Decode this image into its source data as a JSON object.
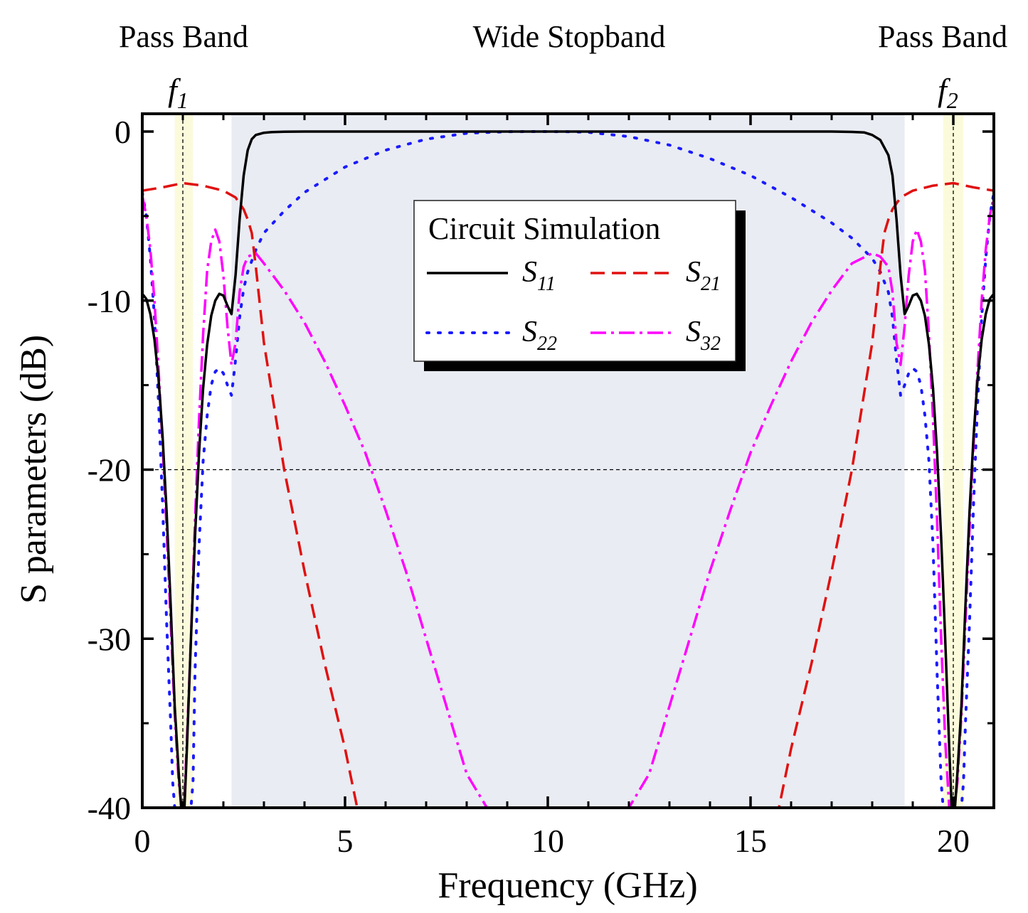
{
  "chart_data": {
    "type": "line",
    "title": "",
    "xlabel": "Frequency (GHz)",
    "ylabel": "S parameters (dB)",
    "xlim": [
      0,
      21
    ],
    "ylim": [
      -40,
      1.2
    ],
    "x_ticks": [
      0,
      5,
      10,
      15,
      20
    ],
    "y_ticks": [
      0,
      -10,
      -20,
      -30,
      -40
    ],
    "x_tick_labels": [
      "0",
      "5",
      "10",
      "15",
      "20"
    ],
    "y_tick_labels": [
      "0",
      "-10",
      "-20",
      "-30",
      "-40"
    ],
    "grid": false,
    "reference_line_y": -20,
    "legend": {
      "title": "Circuit Simulation",
      "position": "upper-center",
      "entries": [
        {
          "series": "S11",
          "base": "S",
          "sub": "11"
        },
        {
          "series": "S21",
          "base": "S",
          "sub": "21"
        },
        {
          "series": "S22",
          "base": "S",
          "sub": "22"
        },
        {
          "series": "S32",
          "base": "S",
          "sub": "32"
        }
      ]
    },
    "annotations": {
      "band_left": "Pass Band",
      "band_center": "Wide Stopband",
      "band_right": "Pass Band",
      "marker_f1": {
        "base": "f",
        "sub": "1",
        "x": 1.0
      },
      "marker_f2": {
        "base": "f",
        "sub": "2",
        "x": 20.0
      }
    },
    "regions": {
      "stopband": [
        2.2,
        18.8
      ],
      "passband_f1": [
        0.8,
        1.25
      ],
      "passband_f2": [
        19.75,
        20.25
      ]
    },
    "series": [
      {
        "name": "S11",
        "color": "#000000",
        "style": "solid",
        "x": [
          0,
          0.1,
          0.2,
          0.3,
          0.4,
          0.5,
          0.6,
          0.7,
          0.8,
          0.9,
          0.96,
          1.0,
          1.04,
          1.1,
          1.2,
          1.3,
          1.4,
          1.5,
          1.6,
          1.7,
          1.8,
          1.9,
          2.0,
          2.1,
          2.2,
          2.3,
          2.4,
          2.5,
          2.6,
          2.7,
          2.8,
          3.0,
          3.2,
          3.5,
          4,
          5,
          6,
          7,
          8,
          9,
          10,
          11,
          12,
          13,
          14,
          15,
          16,
          17,
          17.5,
          17.8,
          18.0,
          18.2,
          18.4,
          18.5,
          18.6,
          18.7,
          18.8,
          18.9,
          19.0,
          19.1,
          19.2,
          19.3,
          19.4,
          19.5,
          19.6,
          19.7,
          19.8,
          19.9,
          19.96,
          20.0,
          20.04,
          20.1,
          20.2,
          20.3,
          20.4,
          20.5,
          20.6,
          20.7,
          20.8,
          20.9,
          21.0
        ],
        "y": [
          -9.6,
          -9.9,
          -10.8,
          -12.3,
          -14.6,
          -18.0,
          -22.5,
          -28.0,
          -34.0,
          -38.0,
          -40.0,
          -40.0,
          -40.0,
          -36.5,
          -30.0,
          -24.0,
          -19.0,
          -15.2,
          -12.6,
          -10.9,
          -10.0,
          -9.6,
          -9.7,
          -10.3,
          -10.8,
          -8.5,
          -5.2,
          -2.6,
          -1.1,
          -0.45,
          -0.2,
          -0.07,
          -0.03,
          -0.01,
          0,
          0,
          0,
          0,
          0,
          0,
          0,
          0,
          0,
          0,
          0,
          0,
          0,
          0,
          -0.02,
          -0.05,
          -0.2,
          -0.5,
          -1.4,
          -2.6,
          -5.2,
          -8.5,
          -10.8,
          -10.3,
          -9.7,
          -9.6,
          -10.0,
          -10.9,
          -12.6,
          -15.2,
          -19.0,
          -24.0,
          -30.0,
          -36.5,
          -40.0,
          -40.0,
          -40.0,
          -38.0,
          -34.0,
          -28.0,
          -22.5,
          -18.0,
          -14.6,
          -12.3,
          -10.8,
          -9.9,
          -9.6
        ]
      },
      {
        "name": "S21",
        "color": "#e01010",
        "style": "dashed",
        "x": [
          0,
          0.5,
          1.0,
          1.5,
          2.0,
          2.3,
          2.5,
          2.6,
          2.7,
          2.8,
          3.0,
          3.5,
          4.0,
          4.5,
          5.0,
          5.3,
          15.7,
          16.0,
          16.5,
          17.0,
          17.5,
          18.0,
          18.2,
          18.3,
          18.4,
          18.5,
          18.7,
          19.0,
          19.5,
          20.0,
          20.5,
          21.0
        ],
        "y": [
          -3.5,
          -3.3,
          -3.05,
          -3.2,
          -3.5,
          -3.9,
          -4.6,
          -5.2,
          -6.0,
          -8.0,
          -12.5,
          -20.0,
          -26.0,
          -31.5,
          -36.5,
          -40.0,
          -40.0,
          -36.5,
          -31.5,
          -26.0,
          -20.0,
          -12.5,
          -8.0,
          -6.0,
          -5.2,
          -4.6,
          -3.9,
          -3.5,
          -3.2,
          -3.05,
          -3.3,
          -3.5
        ]
      },
      {
        "name": "S22",
        "color": "#1a1aff",
        "style": "dotted",
        "x": [
          0,
          0.1,
          0.2,
          0.3,
          0.4,
          0.5,
          0.6,
          0.7,
          0.75,
          0.8,
          0.9,
          1.0,
          1.1,
          1.2,
          1.25,
          1.3,
          1.4,
          1.5,
          1.6,
          1.7,
          1.8,
          1.9,
          2.0,
          2.1,
          2.2,
          2.3,
          2.4,
          2.5,
          2.6,
          2.8,
          3.0,
          3.5,
          4.0,
          5.0,
          6.0,
          7.0,
          8.0,
          9.0,
          9.5,
          10.0,
          10.5,
          11.0,
          12.0,
          13.0,
          14.0,
          15.0,
          16.0,
          17.0,
          17.5,
          18.0,
          18.2,
          18.4,
          18.5,
          18.6,
          18.7,
          18.8,
          18.9,
          19.0,
          19.1,
          19.2,
          19.3,
          19.4,
          19.5,
          19.6,
          19.7,
          19.75,
          19.8,
          19.9,
          20.0,
          20.1,
          20.2,
          20.25,
          20.3,
          20.4,
          20.5,
          20.6,
          20.7,
          20.8,
          20.9,
          21.0
        ],
        "y": [
          -3.6,
          -5.0,
          -7.5,
          -11.0,
          -16.0,
          -22.0,
          -29.0,
          -35.0,
          -38.5,
          -40.0,
          -40.0,
          -40.0,
          -40.0,
          -40.0,
          -38.5,
          -32.0,
          -24.5,
          -19.5,
          -16.8,
          -15.0,
          -14.2,
          -14.0,
          -14.3,
          -15.0,
          -15.6,
          -13.5,
          -11.0,
          -9.3,
          -8.3,
          -7.0,
          -6.0,
          -4.7,
          -3.6,
          -2.1,
          -1.1,
          -0.45,
          -0.1,
          -0.01,
          0,
          0,
          -0.01,
          -0.04,
          -0.3,
          -0.8,
          -1.6,
          -2.6,
          -3.9,
          -5.4,
          -6.3,
          -7.5,
          -8.3,
          -9.5,
          -11.0,
          -13.5,
          -15.6,
          -15.0,
          -14.3,
          -14.0,
          -14.2,
          -15.0,
          -16.8,
          -19.5,
          -24.5,
          -32.0,
          -38.5,
          -40.0,
          -40.0,
          -40.0,
          -40.0,
          -40.0,
          -40.0,
          -38.5,
          -35.0,
          -29.0,
          -22.0,
          -16.0,
          -11.0,
          -7.5,
          -5.0,
          -3.6
        ]
      },
      {
        "name": "S32",
        "color": "#ff00ff",
        "style": "dashdot",
        "x": [
          0,
          0.1,
          0.2,
          0.3,
          0.4,
          0.5,
          0.6,
          0.7,
          0.8,
          0.9,
          0.97,
          1.0,
          1.03,
          1.1,
          1.2,
          1.3,
          1.4,
          1.5,
          1.6,
          1.7,
          1.8,
          1.9,
          2.0,
          2.1,
          2.2,
          2.3,
          2.4,
          2.5,
          2.6,
          2.8,
          3.0,
          3.5,
          4.0,
          4.5,
          5.0,
          5.5,
          6.0,
          6.5,
          7.0,
          7.5,
          8.0,
          8.5,
          9.0,
          9.3,
          11.7,
          12.0,
          12.5,
          13.0,
          13.5,
          14.0,
          14.5,
          15.0,
          15.5,
          16.0,
          16.5,
          17.0,
          17.5,
          18.0,
          18.2,
          18.4,
          18.5,
          18.6,
          18.7,
          18.8,
          18.9,
          19.0,
          19.1,
          19.2,
          19.3,
          19.4,
          19.5,
          19.6,
          19.7,
          19.8,
          19.9,
          19.97,
          20.0,
          20.03,
          20.1,
          20.2,
          20.3,
          20.4,
          20.5,
          20.6,
          20.7,
          20.8,
          20.9,
          21.0
        ],
        "y": [
          -3.8,
          -5.0,
          -7.0,
          -10.0,
          -14.0,
          -18.5,
          -23.5,
          -29.0,
          -34.5,
          -38.5,
          -40.0,
          -40.0,
          -40.0,
          -36.0,
          -30.0,
          -23.0,
          -17.0,
          -12.0,
          -8.2,
          -6.5,
          -5.8,
          -6.5,
          -8.5,
          -11.5,
          -13.8,
          -12.5,
          -9.5,
          -8.0,
          -7.4,
          -7.2,
          -7.8,
          -9.4,
          -11.3,
          -13.6,
          -16.2,
          -19.0,
          -22.4,
          -26.0,
          -30.0,
          -34.0,
          -38.0,
          -40.0,
          -40.0,
          -40.0,
          -40.0,
          -40.0,
          -38.0,
          -34.0,
          -30.0,
          -26.0,
          -22.4,
          -19.0,
          -16.2,
          -13.6,
          -11.3,
          -9.4,
          -7.8,
          -7.2,
          -7.4,
          -8.0,
          -9.5,
          -12.5,
          -13.8,
          -11.5,
          -8.5,
          -6.5,
          -5.8,
          -6.5,
          -8.2,
          -12.0,
          -17.0,
          -23.0,
          -30.0,
          -36.0,
          -40.0,
          -40.0,
          -40.0,
          -40.0,
          -38.5,
          -34.5,
          -29.0,
          -23.5,
          -18.5,
          -14.0,
          -10.0,
          -7.0,
          -5.0,
          -3.8
        ]
      }
    ]
  }
}
